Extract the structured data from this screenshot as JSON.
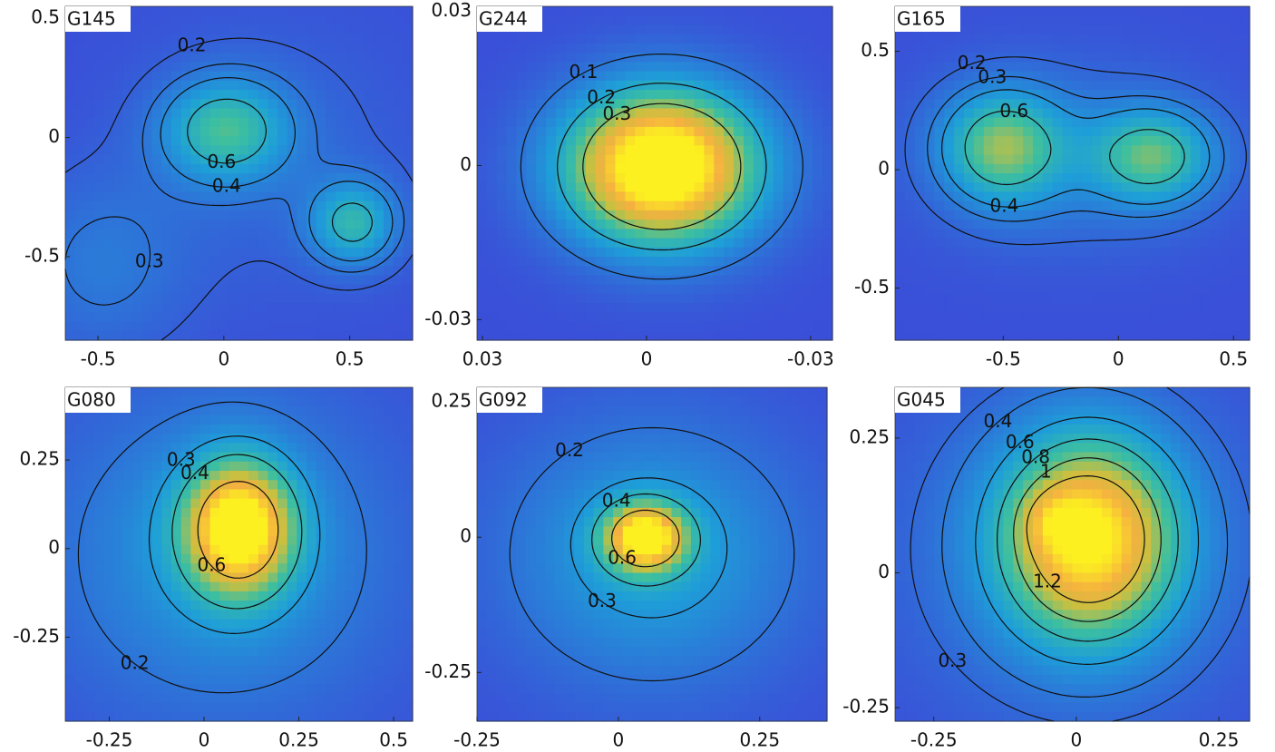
{
  "chart_data": [
    {
      "type": "contour",
      "title": "G145",
      "xlim": [
        -0.63,
        0.75
      ],
      "ylim": [
        -0.85,
        0.55
      ],
      "xticks": [
        -0.5,
        0,
        0.5
      ],
      "yticks": [
        -0.5,
        0,
        0.5
      ],
      "levels": [
        0.2,
        0.3,
        0.4,
        0.6
      ]
    },
    {
      "type": "contour",
      "title": "G244",
      "xlim": [
        0.031,
        -0.034
      ],
      "ylim": [
        -0.034,
        0.031
      ],
      "xticks": [
        0.03,
        0,
        -0.03
      ],
      "yticks": [
        -0.03,
        0,
        0.03
      ],
      "levels": [
        0.1,
        0.2,
        0.3
      ]
    },
    {
      "type": "contour",
      "title": "G165",
      "xlim": [
        -0.97,
        0.57
      ],
      "ylim": [
        -0.72,
        0.69
      ],
      "xticks": [
        -0.5,
        0,
        0.5
      ],
      "yticks": [
        -0.5,
        0,
        0.5
      ],
      "levels": [
        0.2,
        0.3,
        0.4,
        0.6
      ]
    },
    {
      "type": "contour",
      "title": "G080",
      "xlim": [
        -0.366,
        0.55
      ],
      "ylim": [
        -0.487,
        0.455
      ],
      "xticks": [
        -0.25,
        0,
        0.25,
        0.5
      ],
      "yticks": [
        -0.25,
        0,
        0.25
      ],
      "levels": [
        0.2,
        0.3,
        0.4,
        0.6
      ]
    },
    {
      "type": "contour",
      "title": "G092",
      "xlim": [
        -0.25,
        0.369
      ],
      "ylim": [
        -0.34,
        0.277
      ],
      "xticks": [
        -0.25,
        0,
        0.25
      ],
      "yticks": [
        -0.25,
        0,
        0.25
      ],
      "levels": [
        0.2,
        0.3,
        0.4,
        0.6
      ]
    },
    {
      "type": "contour",
      "title": "G045",
      "xlim": [
        -0.318,
        0.304
      ],
      "ylim": [
        -0.275,
        0.344
      ],
      "xticks": [
        -0.25,
        0,
        0.25
      ],
      "yticks": [
        -0.25,
        0,
        0.25
      ],
      "levels": [
        0.3,
        0.4,
        0.6,
        0.8,
        1,
        1.2
      ]
    }
  ]
}
